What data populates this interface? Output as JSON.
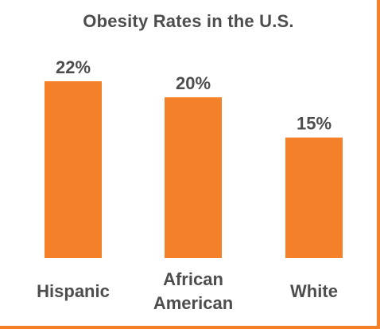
{
  "chart_data": {
    "type": "bar",
    "title": "Obesity Rates in the U.S.",
    "categories": [
      "Hispanic",
      "African American",
      "White"
    ],
    "category_lines": [
      [
        "Hispanic"
      ],
      [
        "African",
        "American"
      ],
      [
        "White"
      ]
    ],
    "values": [
      22,
      20,
      15
    ],
    "value_labels": [
      "22%",
      "20%",
      "15%"
    ],
    "xlabel": "",
    "ylabel": "",
    "ylim": [
      0,
      22
    ],
    "grid": false,
    "bar_color": "#f4812a",
    "text_color": "#4d4d4d"
  }
}
